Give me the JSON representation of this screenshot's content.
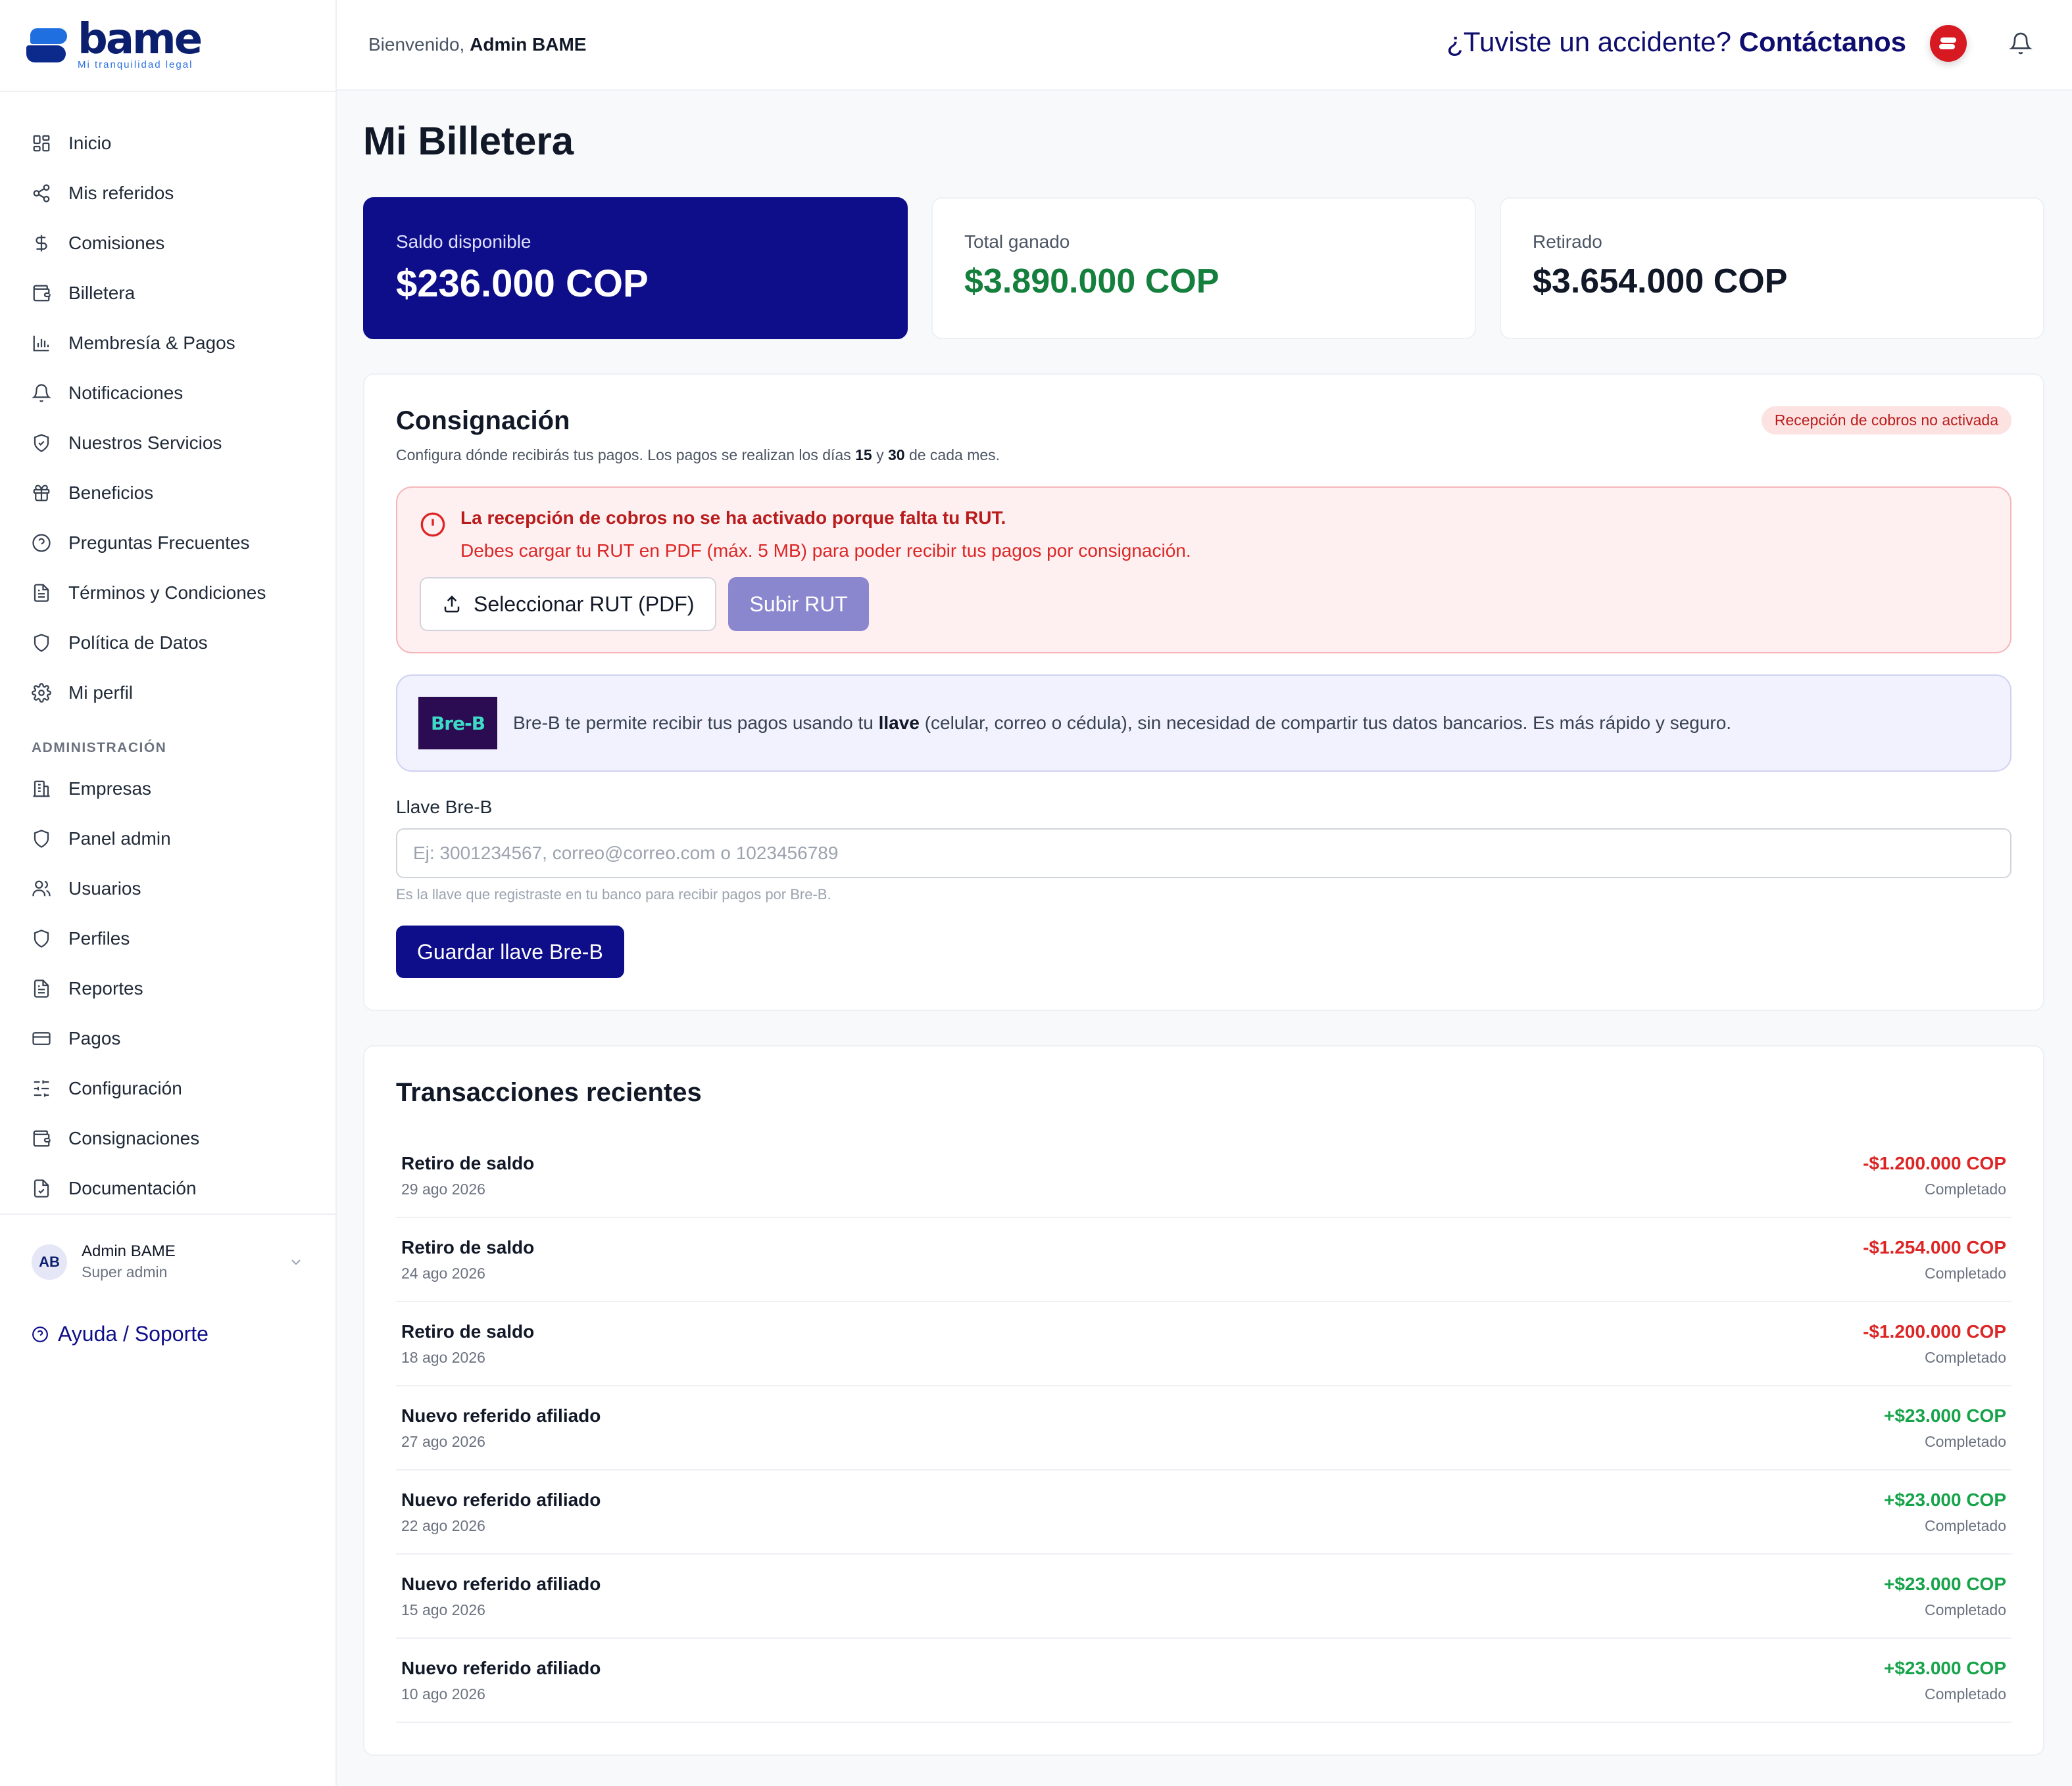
{
  "brand": {
    "name": "bame",
    "tagline": "Mi tranquilidad legal"
  },
  "colors": {
    "primary": "#0f0e8a",
    "positive": "#16a34a",
    "negative": "#dc2626",
    "alert_bg": "#fef0f1"
  },
  "sidebar": {
    "items": [
      {
        "label": "Inicio",
        "icon": "grid-icon"
      },
      {
        "label": "Mis referidos",
        "icon": "share-icon"
      },
      {
        "label": "Comisiones",
        "icon": "dollar-icon"
      },
      {
        "label": "Billetera",
        "icon": "wallet-icon"
      },
      {
        "label": "Membresía & Pagos",
        "icon": "bar-chart-icon"
      },
      {
        "label": "Notificaciones",
        "icon": "bell-icon"
      },
      {
        "label": "Nuestros Servicios",
        "icon": "shield-check-icon"
      },
      {
        "label": "Beneficios",
        "icon": "gift-icon"
      },
      {
        "label": "Preguntas Frecuentes",
        "icon": "help-circle-icon"
      },
      {
        "label": "Términos y Condiciones",
        "icon": "file-text-icon"
      },
      {
        "label": "Política de Datos",
        "icon": "shield-icon"
      },
      {
        "label": "Mi perfil",
        "icon": "gear-icon"
      }
    ],
    "admin_section": "ADMINISTRACIÓN",
    "admin_items": [
      {
        "label": "Empresas",
        "icon": "building-icon"
      },
      {
        "label": "Panel admin",
        "icon": "shield-icon"
      },
      {
        "label": "Usuarios",
        "icon": "users-icon"
      },
      {
        "label": "Perfiles",
        "icon": "shield-icon"
      },
      {
        "label": "Reportes",
        "icon": "file-text-icon"
      },
      {
        "label": "Pagos",
        "icon": "credit-card-icon"
      },
      {
        "label": "Configuración",
        "icon": "sliders-icon"
      },
      {
        "label": "Consignaciones",
        "icon": "wallet-icon"
      },
      {
        "label": "Documentación",
        "icon": "file-check-icon"
      }
    ],
    "user": {
      "initials": "AB",
      "name": "Admin BAME",
      "role": "Super admin"
    },
    "help": "Ayuda / Soporte"
  },
  "topbar": {
    "welcome_prefix": "Bienvenido,",
    "welcome_name": "Admin BAME",
    "accident_text": "¿Tuviste un accidente?",
    "accident_cta": "Contáctanos"
  },
  "page": {
    "title": "Mi Billetera"
  },
  "cards": [
    {
      "label": "Saldo disponible",
      "value": "$236.000 COP"
    },
    {
      "label": "Total ganado",
      "value": "$3.890.000 COP"
    },
    {
      "label": "Retirado",
      "value": "$3.654.000 COP"
    }
  ],
  "consignacion": {
    "title": "Consignación",
    "subtitle_pre": "Configura dónde recibirás tus pagos. Los pagos se realizan los días",
    "day1": "15",
    "subtitle_and": "y",
    "day2": "30",
    "subtitle_post": "de cada mes.",
    "badge": "Recepción de cobros no activada",
    "alert_title": "La recepción de cobros no se ha activado porque falta tu RUT.",
    "alert_desc": "Debes cargar tu RUT en PDF (máx. 5 MB) para poder recibir tus pagos por consignación.",
    "select_button": "Seleccionar RUT (PDF)",
    "upload_button": "Subir RUT",
    "breb_logo": "Bre-B",
    "info_pre": "Bre-B te permite recibir tus pagos usando tu",
    "info_bold": "llave",
    "info_post": "(celular, correo o cédula), sin necesidad de compartir tus datos bancarios. Es más rápido y seguro.",
    "field_label": "Llave Bre-B",
    "field_placeholder": "Ej: 3001234567, correo@correo.com o 1023456789",
    "field_hint": "Es la llave que registraste en tu banco para recibir pagos por Bre-B.",
    "save_button": "Guardar llave Bre-B"
  },
  "transactions": {
    "title": "Transacciones recientes",
    "rows": [
      {
        "name": "Retiro de saldo",
        "date": "29 ago 2026",
        "amount": "-$1.200.000 COP",
        "status": "Completado",
        "type": "neg"
      },
      {
        "name": "Retiro de saldo",
        "date": "24 ago 2026",
        "amount": "-$1.254.000 COP",
        "status": "Completado",
        "type": "neg"
      },
      {
        "name": "Retiro de saldo",
        "date": "18 ago 2026",
        "amount": "-$1.200.000 COP",
        "status": "Completado",
        "type": "neg"
      },
      {
        "name": "Nuevo referido afiliado",
        "date": "27 ago 2026",
        "amount": "+$23.000 COP",
        "status": "Completado",
        "type": "pos"
      },
      {
        "name": "Nuevo referido afiliado",
        "date": "22 ago 2026",
        "amount": "+$23.000 COP",
        "status": "Completado",
        "type": "pos"
      },
      {
        "name": "Nuevo referido afiliado",
        "date": "15 ago 2026",
        "amount": "+$23.000 COP",
        "status": "Completado",
        "type": "pos"
      },
      {
        "name": "Nuevo referido afiliado",
        "date": "10 ago 2026",
        "amount": "+$23.000 COP",
        "status": "Completado",
        "type": "pos"
      }
    ]
  }
}
